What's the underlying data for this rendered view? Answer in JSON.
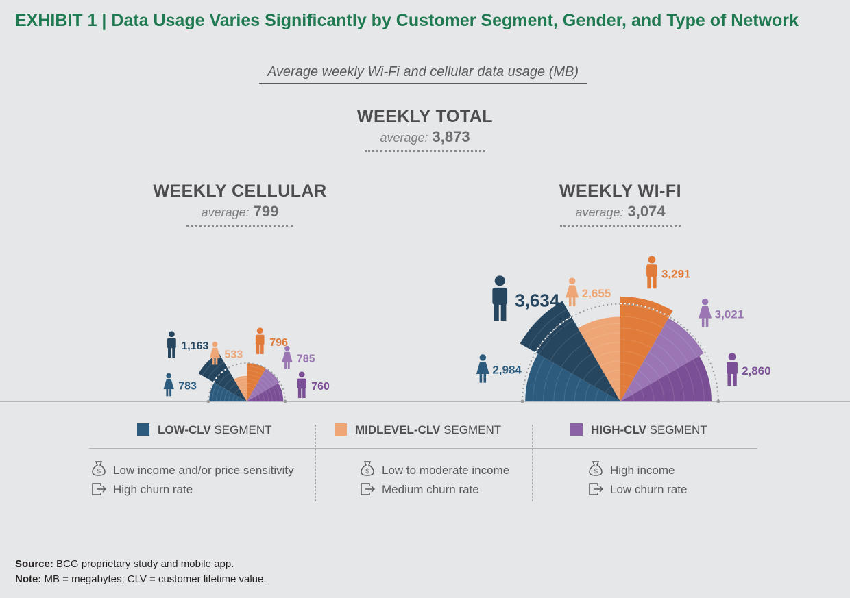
{
  "title": "EXHIBIT 1 | Data Usage Varies Significantly by Customer Segment, Gender, and Type of Network",
  "subtitle": "Average weekly Wi-Fi and cellular data usage (MB)",
  "total": {
    "heading": "WEEKLY TOTAL",
    "avg_label": "average:",
    "avg_value": "3,873"
  },
  "cellular": {
    "heading": "WEEKLY CELLULAR",
    "avg_label": "average:",
    "avg_value": "799"
  },
  "wifi": {
    "heading": "WEEKLY WI-FI",
    "avg_label": "average:",
    "avg_value": "3,074"
  },
  "colors": {
    "low_male": "#26455f",
    "low_female": "#2c5b7e",
    "mid_male": "#e07b39",
    "mid_female": "#eea676",
    "high_male": "#7b4f95",
    "high_female": "#9a76b4",
    "axis": "#a7a9ac"
  },
  "legend": [
    {
      "key": "low",
      "bold": "LOW-CLV",
      "rest": " SEGMENT",
      "color": "#2c5b7e"
    },
    {
      "key": "mid",
      "bold": "MIDLEVEL-CLV",
      "rest": " SEGMENT",
      "color": "#eea676"
    },
    {
      "key": "high",
      "bold": "HIGH-CLV",
      "rest": " SEGMENT",
      "color": "#8b62a6"
    }
  ],
  "segments": {
    "low": {
      "income": "Low income and/or price sensitivity",
      "churn": "High churn rate"
    },
    "mid": {
      "income": "Low to moderate income",
      "churn": "Medium churn rate"
    },
    "high": {
      "income": "High income",
      "churn": "Low churn rate"
    }
  },
  "footer": {
    "source_label": "Source:",
    "source_text": " BCG proprietary study and mobile app.",
    "note_label": "Note:",
    "note_text": " MB = megabytes; CLV = customer lifetime value."
  },
  "chart_data": [
    {
      "type": "polar-area",
      "title": "WEEKLY CELLULAR",
      "unit": "MB",
      "average": 799,
      "order": [
        "low-female",
        "low-male",
        "mid-female",
        "mid-male",
        "high-female",
        "high-male"
      ],
      "series": [
        {
          "segment": "low",
          "gender": "female",
          "value": 783,
          "label": "783"
        },
        {
          "segment": "low",
          "gender": "male",
          "value": 1163,
          "label": "1,163"
        },
        {
          "segment": "mid",
          "gender": "female",
          "value": 533,
          "label": "533"
        },
        {
          "segment": "mid",
          "gender": "male",
          "value": 796,
          "label": "796"
        },
        {
          "segment": "high",
          "gender": "female",
          "value": 785,
          "label": "785"
        },
        {
          "segment": "high",
          "gender": "male",
          "value": 760,
          "label": "760"
        }
      ]
    },
    {
      "type": "polar-area",
      "title": "WEEKLY WI-FI",
      "unit": "MB",
      "average": 3074,
      "order": [
        "low-female",
        "low-male",
        "mid-female",
        "mid-male",
        "high-female",
        "high-male"
      ],
      "series": [
        {
          "segment": "low",
          "gender": "female",
          "value": 2984,
          "label": "2,984"
        },
        {
          "segment": "low",
          "gender": "male",
          "value": 3634,
          "label": "3,634"
        },
        {
          "segment": "mid",
          "gender": "female",
          "value": 2655,
          "label": "2,655"
        },
        {
          "segment": "mid",
          "gender": "male",
          "value": 3291,
          "label": "3,291"
        },
        {
          "segment": "high",
          "gender": "female",
          "value": 3021,
          "label": "3,021"
        },
        {
          "segment": "high",
          "gender": "male",
          "value": 2860,
          "label": "2,860"
        }
      ]
    }
  ]
}
